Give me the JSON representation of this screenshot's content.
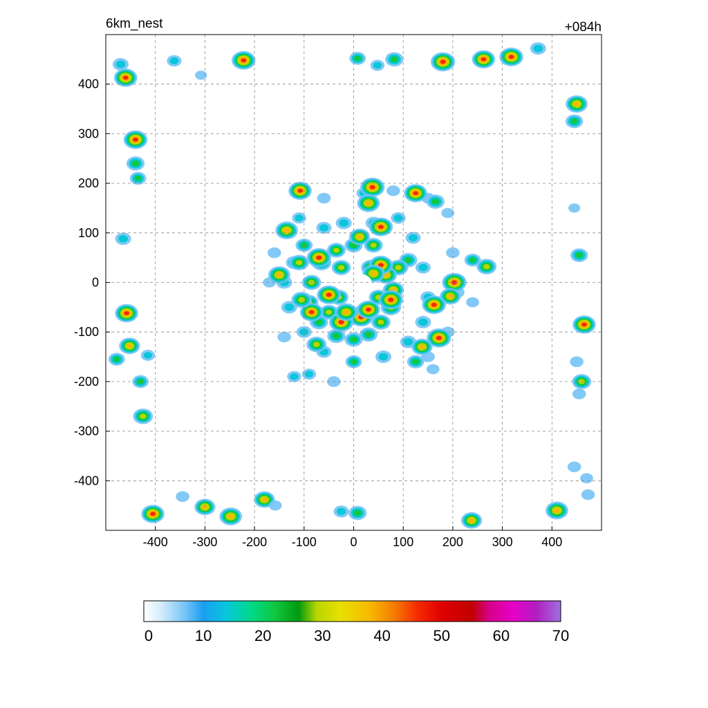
{
  "chart_data": {
    "type": "heatmap",
    "title_left": "6km_nest",
    "title_right": "+084h",
    "xlim": [
      -500,
      500
    ],
    "ylim": [
      -500,
      500
    ],
    "xticks": [
      -400,
      -300,
      -200,
      -100,
      0,
      100,
      200,
      300,
      400
    ],
    "yticks": [
      400,
      300,
      200,
      100,
      0,
      -100,
      -200,
      -300,
      -400
    ],
    "grid": true,
    "colorbar": {
      "vmin": 0,
      "vmax": 70,
      "ticks": [
        0,
        10,
        20,
        30,
        40,
        50,
        60,
        70
      ],
      "stops": [
        {
          "v": 0,
          "c": "#ffffff"
        },
        {
          "v": 3,
          "c": "#d2ecfb"
        },
        {
          "v": 7,
          "c": "#74c3f6"
        },
        {
          "v": 10,
          "c": "#1a9ef2"
        },
        {
          "v": 14,
          "c": "#08c7d9"
        },
        {
          "v": 18,
          "c": "#00d98a"
        },
        {
          "v": 22,
          "c": "#10c840"
        },
        {
          "v": 26,
          "c": "#009a10"
        },
        {
          "v": 29,
          "c": "#b8d600"
        },
        {
          "v": 33,
          "c": "#e8e000"
        },
        {
          "v": 38,
          "c": "#f7b800"
        },
        {
          "v": 42,
          "c": "#f57d00"
        },
        {
          "v": 46,
          "c": "#f52a00"
        },
        {
          "v": 50,
          "c": "#e00000"
        },
        {
          "v": 55,
          "c": "#c00000"
        },
        {
          "v": 58,
          "c": "#d8008a"
        },
        {
          "v": 62,
          "c": "#e600c8"
        },
        {
          "v": 66,
          "c": "#b020c0"
        },
        {
          "v": 70,
          "c": "#a070e0"
        }
      ]
    },
    "eye": {
      "x": 15,
      "y": -2,
      "r": 22
    },
    "features": [
      {
        "x": -470,
        "y": 440,
        "v": 22
      },
      {
        "x": -460,
        "y": 413,
        "v": 48
      },
      {
        "x": -362,
        "y": 447,
        "v": 18
      },
      {
        "x": -222,
        "y": 448,
        "v": 50
      },
      {
        "x": -308,
        "y": 418,
        "v": 8
      },
      {
        "x": 8,
        "y": 452,
        "v": 24
      },
      {
        "x": 48,
        "y": 438,
        "v": 16
      },
      {
        "x": 82,
        "y": 450,
        "v": 30
      },
      {
        "x": 180,
        "y": 445,
        "v": 52
      },
      {
        "x": 262,
        "y": 450,
        "v": 48
      },
      {
        "x": 318,
        "y": 455,
        "v": 50
      },
      {
        "x": 372,
        "y": 472,
        "v": 22
      },
      {
        "x": 450,
        "y": 360,
        "v": 44
      },
      {
        "x": 445,
        "y": 325,
        "v": 28
      },
      {
        "x": -440,
        "y": 288,
        "v": 50
      },
      {
        "x": -440,
        "y": 240,
        "v": 30
      },
      {
        "x": -435,
        "y": 210,
        "v": 24
      },
      {
        "x": -465,
        "y": 88,
        "v": 22
      },
      {
        "x": 455,
        "y": 55,
        "v": 28
      },
      {
        "x": 445,
        "y": 150,
        "v": 8
      },
      {
        "x": -458,
        "y": -62,
        "v": 48
      },
      {
        "x": -452,
        "y": -128,
        "v": 40
      },
      {
        "x": -478,
        "y": -155,
        "v": 24
      },
      {
        "x": -430,
        "y": -200,
        "v": 24
      },
      {
        "x": -425,
        "y": -270,
        "v": 36
      },
      {
        "x": -415,
        "y": -147,
        "v": 16
      },
      {
        "x": 465,
        "y": -85,
        "v": 48
      },
      {
        "x": 460,
        "y": -200,
        "v": 34
      },
      {
        "x": 455,
        "y": -225,
        "v": 14
      },
      {
        "x": 450,
        "y": -160,
        "v": 14
      },
      {
        "x": 445,
        "y": -372,
        "v": 14
      },
      {
        "x": 470,
        "y": -395,
        "v": 12
      },
      {
        "x": 473,
        "y": -428,
        "v": 14
      },
      {
        "x": 410,
        "y": -460,
        "v": 46
      },
      {
        "x": -405,
        "y": -467,
        "v": 48
      },
      {
        "x": -345,
        "y": -432,
        "v": 14
      },
      {
        "x": -300,
        "y": -453,
        "v": 40
      },
      {
        "x": -248,
        "y": -472,
        "v": 46
      },
      {
        "x": -180,
        "y": -438,
        "v": 40
      },
      {
        "x": -158,
        "y": -450,
        "v": 12
      },
      {
        "x": -25,
        "y": -462,
        "v": 20
      },
      {
        "x": 8,
        "y": -465,
        "v": 30
      },
      {
        "x": 238,
        "y": -480,
        "v": 40
      },
      {
        "x": 110,
        "y": 45,
        "v": 30
      },
      {
        "x": 90,
        "y": 30,
        "v": 36
      },
      {
        "x": 65,
        "y": 15,
        "v": 44
      },
      {
        "x": 80,
        "y": -15,
        "v": 40
      },
      {
        "x": 75,
        "y": -50,
        "v": 38
      },
      {
        "x": 55,
        "y": -80,
        "v": 34
      },
      {
        "x": 30,
        "y": -105,
        "v": 30
      },
      {
        "x": 0,
        "y": -115,
        "v": 30
      },
      {
        "x": -35,
        "y": -108,
        "v": 30
      },
      {
        "x": -70,
        "y": -80,
        "v": 30
      },
      {
        "x": -90,
        "y": -40,
        "v": 32
      },
      {
        "x": -85,
        "y": 0,
        "v": 34
      },
      {
        "x": -65,
        "y": 40,
        "v": 36
      },
      {
        "x": -35,
        "y": 65,
        "v": 32
      },
      {
        "x": 0,
        "y": 75,
        "v": 30
      },
      {
        "x": 40,
        "y": 75,
        "v": 32
      },
      {
        "x": 35,
        "y": 30,
        "v": 36
      },
      {
        "x": -25,
        "y": 30,
        "v": 34
      },
      {
        "x": -30,
        "y": -30,
        "v": 34
      },
      {
        "x": 50,
        "y": -30,
        "v": 34
      },
      {
        "x": 20,
        "y": -60,
        "v": 36
      },
      {
        "x": -50,
        "y": -60,
        "v": 32
      },
      {
        "x": 55,
        "y": 35,
        "v": 50
      },
      {
        "x": -70,
        "y": 50,
        "v": 52
      },
      {
        "x": -50,
        "y": -25,
        "v": 50
      },
      {
        "x": 75,
        "y": -35,
        "v": 52
      },
      {
        "x": 15,
        "y": -70,
        "v": 50
      },
      {
        "x": -25,
        "y": -80,
        "v": 52
      },
      {
        "x": 30,
        "y": -55,
        "v": 48
      },
      {
        "x": -85,
        "y": -60,
        "v": 48
      },
      {
        "x": 40,
        "y": 18,
        "v": 45
      },
      {
        "x": -15,
        "y": -60,
        "v": 46
      },
      {
        "x": -100,
        "y": 75,
        "v": 26
      },
      {
        "x": -120,
        "y": 40,
        "v": 24
      },
      {
        "x": -140,
        "y": 0,
        "v": 22
      },
      {
        "x": -130,
        "y": -50,
        "v": 22
      },
      {
        "x": -100,
        "y": -100,
        "v": 20
      },
      {
        "x": -60,
        "y": -140,
        "v": 20
      },
      {
        "x": 0,
        "y": -160,
        "v": 24
      },
      {
        "x": 60,
        "y": -150,
        "v": 22
      },
      {
        "x": 110,
        "y": -120,
        "v": 22
      },
      {
        "x": 140,
        "y": -80,
        "v": 22
      },
      {
        "x": 150,
        "y": -30,
        "v": 20
      },
      {
        "x": 140,
        "y": 30,
        "v": 20
      },
      {
        "x": 120,
        "y": 90,
        "v": 20
      },
      {
        "x": 90,
        "y": 130,
        "v": 18
      },
      {
        "x": 40,
        "y": 120,
        "v": 22
      },
      {
        "x": -20,
        "y": 120,
        "v": 22
      },
      {
        "x": -60,
        "y": 110,
        "v": 20
      },
      {
        "x": -110,
        "y": 130,
        "v": 16
      },
      {
        "x": -60,
        "y": 170,
        "v": 14
      },
      {
        "x": 20,
        "y": 180,
        "v": 16
      },
      {
        "x": 80,
        "y": 185,
        "v": 14
      },
      {
        "x": 150,
        "y": 170,
        "v": 14
      },
      {
        "x": 190,
        "y": 140,
        "v": 12
      },
      {
        "x": 200,
        "y": 60,
        "v": 14
      },
      {
        "x": 210,
        "y": -20,
        "v": 14
      },
      {
        "x": 190,
        "y": -100,
        "v": 14
      },
      {
        "x": 150,
        "y": -150,
        "v": 14
      },
      {
        "x": -160,
        "y": 60,
        "v": 14
      },
      {
        "x": -170,
        "y": 0,
        "v": 12
      },
      {
        "x": -140,
        "y": -110,
        "v": 14
      },
      {
        "x": -90,
        "y": -185,
        "v": 16
      },
      {
        "x": -40,
        "y": -200,
        "v": 14
      },
      {
        "x": -120,
        "y": -190,
        "v": 16
      },
      {
        "x": 160,
        "y": -175,
        "v": 12
      },
      {
        "x": -135,
        "y": 105,
        "v": 46
      },
      {
        "x": -108,
        "y": 185,
        "v": 48
      },
      {
        "x": 38,
        "y": 192,
        "v": 52
      },
      {
        "x": 30,
        "y": 160,
        "v": 46
      },
      {
        "x": 55,
        "y": 112,
        "v": 50
      },
      {
        "x": 125,
        "y": 180,
        "v": 48
      },
      {
        "x": 165,
        "y": 163,
        "v": 30
      },
      {
        "x": 12,
        "y": 92,
        "v": 40
      },
      {
        "x": -150,
        "y": 15,
        "v": 44
      },
      {
        "x": -110,
        "y": 40,
        "v": 36
      },
      {
        "x": -105,
        "y": -35,
        "v": 38
      },
      {
        "x": -75,
        "y": -125,
        "v": 36
      },
      {
        "x": 203,
        "y": 0,
        "v": 52
      },
      {
        "x": 195,
        "y": -28,
        "v": 40
      },
      {
        "x": 162,
        "y": -45,
        "v": 50
      },
      {
        "x": 172,
        "y": -112,
        "v": 52
      },
      {
        "x": 138,
        "y": -130,
        "v": 40
      },
      {
        "x": 240,
        "y": 45,
        "v": 24
      },
      {
        "x": 268,
        "y": 32,
        "v": 36
      },
      {
        "x": 125,
        "y": -160,
        "v": 26
      },
      {
        "x": 240,
        "y": -40,
        "v": 12
      }
    ]
  }
}
